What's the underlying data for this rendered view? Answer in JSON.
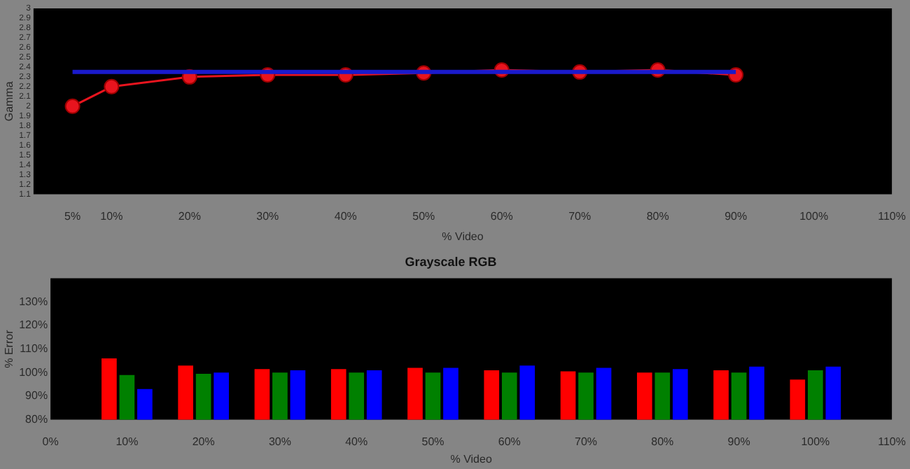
{
  "chart_data": [
    {
      "type": "line",
      "ylabel": "Gamma",
      "xlabel": "% Video",
      "xlim": [
        0,
        110
      ],
      "ylim": [
        1.1,
        3
      ],
      "xticks": [
        {
          "value": 5,
          "label": "5%"
        },
        {
          "value": 10,
          "label": "10%"
        },
        {
          "value": 20,
          "label": "20%"
        },
        {
          "value": 30,
          "label": "30%"
        },
        {
          "value": 40,
          "label": "40%"
        },
        {
          "value": 50,
          "label": "50%"
        },
        {
          "value": 60,
          "label": "60%"
        },
        {
          "value": 70,
          "label": "70%"
        },
        {
          "value": 80,
          "label": "80%"
        },
        {
          "value": 90,
          "label": "90%"
        },
        {
          "value": 100,
          "label": "100%"
        },
        {
          "value": 110,
          "label": "110%"
        }
      ],
      "yticks": [
        1.1,
        1.2,
        1.3,
        1.4,
        1.5,
        1.6,
        1.7,
        1.8,
        1.9,
        2,
        2.1,
        2.2,
        2.3,
        2.4,
        2.5,
        2.6,
        2.7,
        2.8,
        2.9,
        3
      ],
      "series": [
        {
          "color": "#1a1acc",
          "x": [
            5,
            90
          ],
          "values": [
            2.35,
            2.35
          ],
          "marker": "none"
        },
        {
          "color": "#e8141e",
          "x": [
            5,
            10,
            20,
            30,
            40,
            50,
            60,
            70,
            80,
            90
          ],
          "values": [
            2.0,
            2.2,
            2.3,
            2.32,
            2.32,
            2.34,
            2.37,
            2.35,
            2.37,
            2.32
          ],
          "marker": "circle"
        }
      ]
    },
    {
      "type": "bar",
      "title": "Grayscale RGB",
      "ylabel": "% Error",
      "xlabel": "% Video",
      "ylim": [
        80,
        140
      ],
      "yticks": [
        {
          "value": 80,
          "label": "80%"
        },
        {
          "value": 90,
          "label": "90%"
        },
        {
          "value": 100,
          "label": "100%"
        },
        {
          "value": 110,
          "label": "110%"
        },
        {
          "value": 120,
          "label": "120%"
        },
        {
          "value": 130,
          "label": "130%"
        }
      ],
      "categories": [
        "0%",
        "10%",
        "20%",
        "30%",
        "40%",
        "50%",
        "60%",
        "70%",
        "80%",
        "90%",
        "100%",
        "110%"
      ],
      "series": [
        {
          "color": "#ff0000",
          "values": [
            null,
            106,
            103,
            101.5,
            101.5,
            102,
            101,
            100.5,
            100,
            101,
            97,
            null
          ]
        },
        {
          "color": "#008000",
          "values": [
            null,
            99,
            99.5,
            100,
            100,
            100,
            100,
            100,
            100,
            100,
            101,
            null
          ]
        },
        {
          "color": "#0000ff",
          "values": [
            null,
            93,
            100,
            101,
            101,
            102,
            103,
            102,
            101.5,
            102.5,
            102.5,
            null
          ]
        }
      ]
    }
  ]
}
